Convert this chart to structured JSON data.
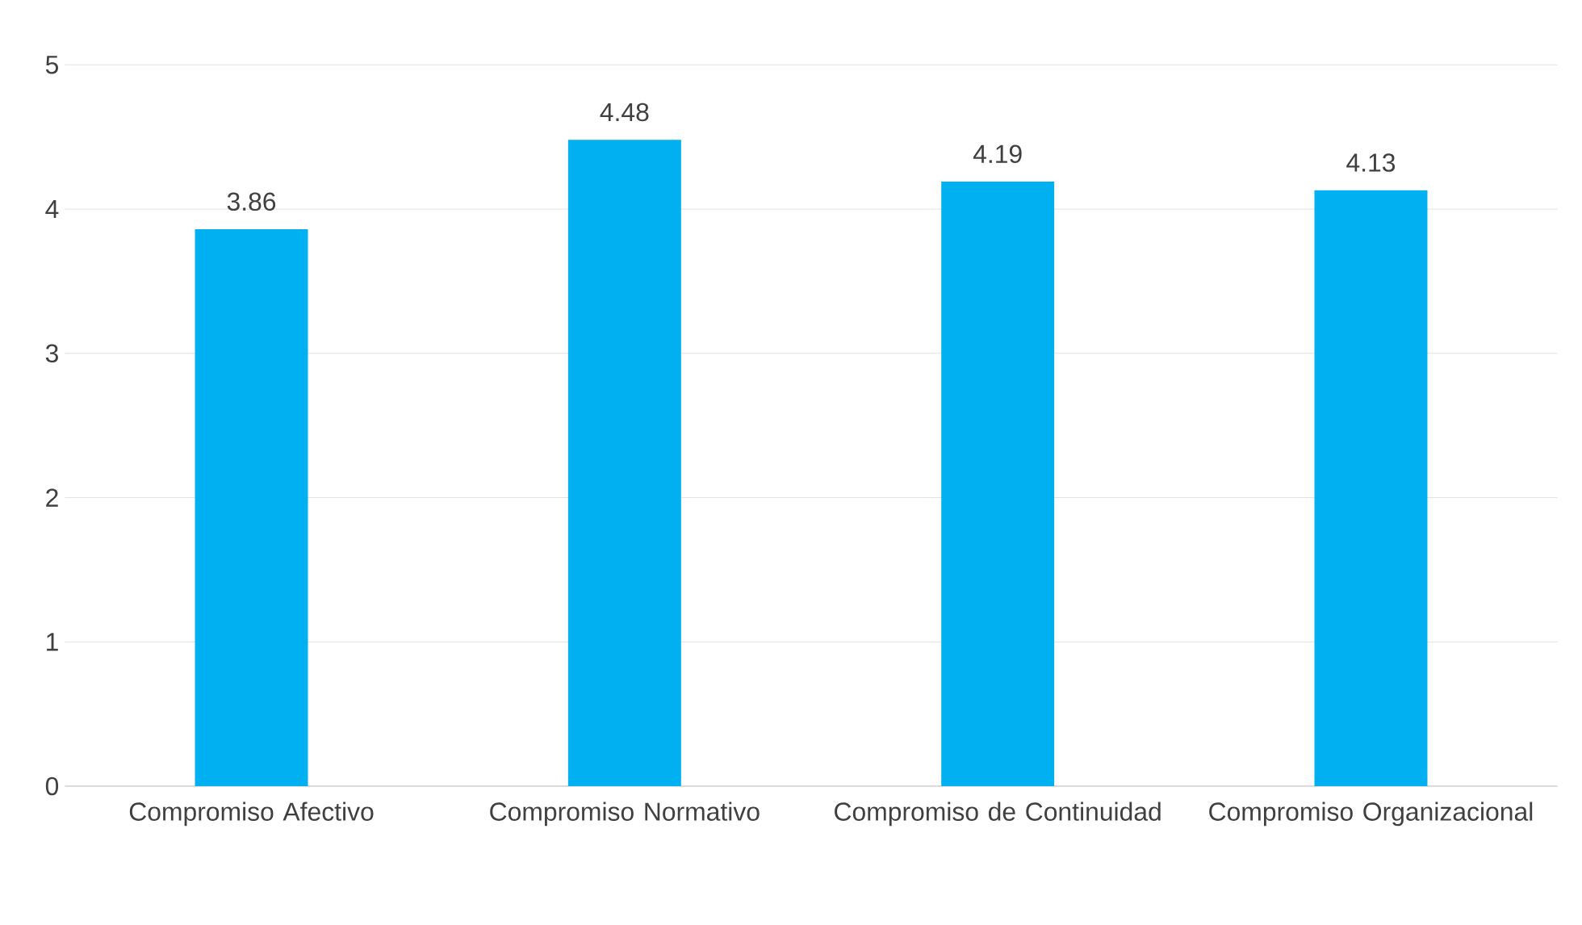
{
  "chart_data": {
    "type": "bar",
    "categories": [
      "Compromiso Afectivo",
      "Compromiso Normativo",
      "Compromiso de Continuidad",
      "Compromiso Organizacional"
    ],
    "values": [
      3.86,
      4.48,
      4.19,
      4.13
    ],
    "color": "#00b0f0",
    "ylim": [
      0,
      5
    ],
    "yticks": [
      0,
      1,
      2,
      3,
      4,
      5
    ],
    "grid": "y",
    "data_labels": true
  }
}
